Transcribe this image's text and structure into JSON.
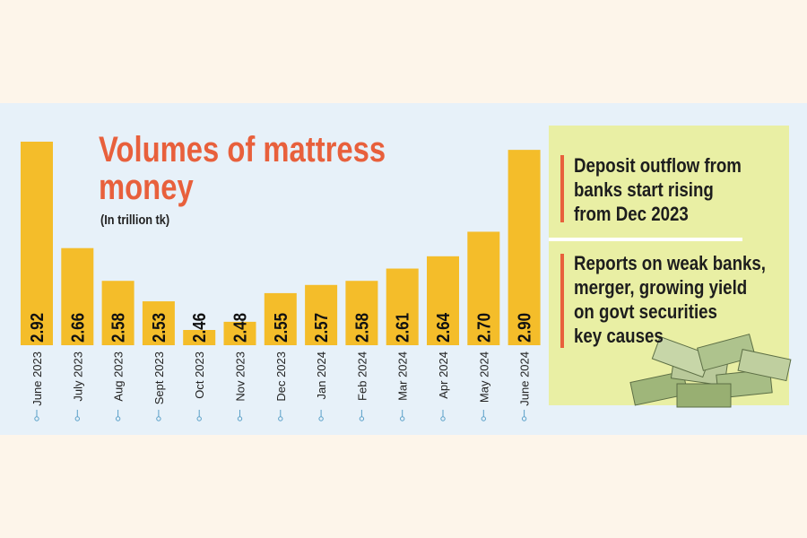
{
  "chart_data": {
    "type": "bar",
    "title": [
      "Volumes of mattress",
      "money"
    ],
    "subtitle": "(In trillion tk)",
    "categories": [
      "June 2023",
      "July 2023",
      "Aug 2023",
      "Sept 2023",
      "Oct 2023",
      "Nov 2023",
      "Dec 2023",
      "Jan 2024",
      "Feb 2024",
      "Mar 2024",
      "Apr 2024",
      "May 2024",
      "June 2024"
    ],
    "values": [
      2.92,
      2.66,
      2.58,
      2.53,
      2.46,
      2.48,
      2.55,
      2.57,
      2.58,
      2.61,
      2.64,
      2.7,
      2.9
    ],
    "value_labels": [
      "2.92",
      "2.66",
      "2.58",
      "2.53",
      "2.46",
      "2.48",
      "2.55",
      "2.57",
      "2.58",
      "2.61",
      "2.64",
      "2.70",
      "2.90"
    ],
    "color": "#f4bd2a",
    "annotations": [
      [
        "Deposit outflow from",
        "banks start rising",
        "from Dec 2023"
      ],
      [
        "Reports on weak banks,",
        "merger, growing yield",
        "on govt securities",
        "key causes"
      ]
    ]
  }
}
